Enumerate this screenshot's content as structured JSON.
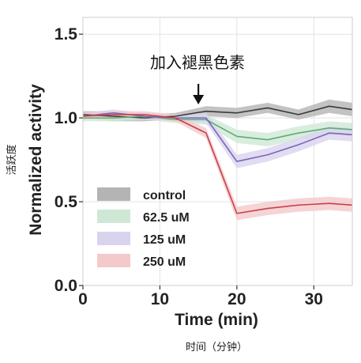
{
  "chart_data": {
    "type": "line",
    "ylabel": "Normalized activity",
    "ylabel_cn": "活跃度",
    "xlabel": "Time (min)",
    "xlabel_cn": "时间（分钟）",
    "annotation": "加入褪黑色素",
    "annotation_x": 15,
    "xlim": [
      0,
      35
    ],
    "ylim": [
      0.0,
      1.6
    ],
    "x_ticks": [
      0,
      10,
      20,
      30
    ],
    "y_ticks": [
      0.0,
      0.5,
      1.0,
      1.5
    ],
    "x_tick_labels": [
      "0",
      "10",
      "20",
      "30"
    ],
    "y_tick_labels": [
      "0.0",
      "0.5",
      "1.0",
      "1.5"
    ],
    "grid": true,
    "legend_position": "lower-left",
    "series": [
      {
        "name": "control",
        "color": "#3a3a3a",
        "band_color": "#b4b4b4",
        "x": [
          0,
          4,
          8,
          12,
          16,
          20,
          24,
          28,
          32,
          35
        ],
        "y": [
          1.02,
          1.01,
          1.0,
          1.01,
          1.04,
          1.03,
          1.06,
          1.02,
          1.07,
          1.05
        ],
        "err": [
          0.02,
          0.03,
          0.02,
          0.02,
          0.03,
          0.03,
          0.03,
          0.03,
          0.04,
          0.04
        ]
      },
      {
        "name": "62.5 uM",
        "color": "#5bae74",
        "band_color": "#cfe8d6",
        "x": [
          0,
          4,
          8,
          12,
          16,
          20,
          24,
          28,
          32,
          35
        ],
        "y": [
          1.0,
          1.0,
          1.01,
          0.99,
          0.99,
          0.89,
          0.87,
          0.91,
          0.94,
          0.93
        ],
        "err": [
          0.02,
          0.02,
          0.02,
          0.02,
          0.03,
          0.04,
          0.04,
          0.04,
          0.04,
          0.04
        ]
      },
      {
        "name": "125 uM",
        "color": "#7766b8",
        "band_color": "#d9d3ee",
        "x": [
          0,
          4,
          8,
          12,
          16,
          20,
          24,
          28,
          32,
          35
        ],
        "y": [
          1.01,
          1.03,
          1.01,
          1.0,
          1.0,
          0.74,
          0.78,
          0.84,
          0.91,
          0.9
        ],
        "err": [
          0.02,
          0.02,
          0.02,
          0.02,
          0.03,
          0.04,
          0.04,
          0.04,
          0.04,
          0.04
        ]
      },
      {
        "name": "250 uM",
        "color": "#c9404a",
        "band_color": "#f3c9cc",
        "x": [
          0,
          4,
          8,
          12,
          16,
          20,
          24,
          28,
          32,
          35
        ],
        "y": [
          1.01,
          1.02,
          1.02,
          1.0,
          0.91,
          0.43,
          0.46,
          0.48,
          0.49,
          0.48
        ],
        "err": [
          0.02,
          0.02,
          0.02,
          0.02,
          0.03,
          0.04,
          0.04,
          0.04,
          0.04,
          0.04
        ]
      }
    ]
  }
}
